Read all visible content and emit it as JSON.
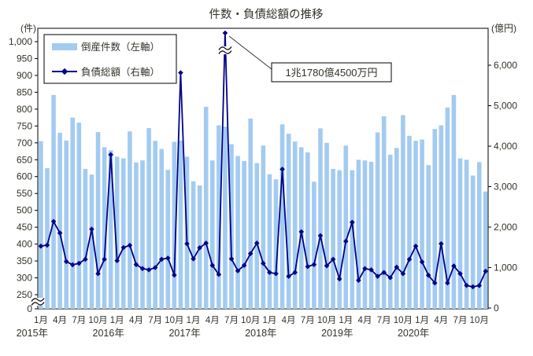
{
  "title": "件数・負債総額の推移",
  "left_axis": {
    "unit": "(件)",
    "ticks": [
      0,
      250,
      300,
      350,
      400,
      450,
      500,
      550,
      600,
      650,
      700,
      750,
      800,
      850,
      900,
      950,
      1000
    ],
    "break_between": [
      0,
      250
    ]
  },
  "right_axis": {
    "unit": "(億円)",
    "ticks": [
      0,
      1000,
      2000,
      3000,
      4000,
      5000,
      6000
    ]
  },
  "legend": {
    "bar_label": "倒産件数（左軸）",
    "line_label": "負債総額（右軸）"
  },
  "annotation": {
    "text": "1兆1780億4500万円",
    "points_to": "2017-06"
  },
  "x_axis": {
    "year_labels": [
      "2015年",
      "2016年",
      "2017年",
      "2018年",
      "2019年",
      "2020年"
    ],
    "labeled_months": [
      1,
      4,
      7,
      10
    ],
    "month_suffix": "月"
  },
  "colors": {
    "bar": "#A3CBF1",
    "line": "#00008B",
    "text": "#33322a",
    "border": "#000000",
    "background": "#FFFFFF"
  },
  "chart_data": {
    "type": "combo",
    "x": [
      "2015-01",
      "2015-02",
      "2015-03",
      "2015-04",
      "2015-05",
      "2015-06",
      "2015-07",
      "2015-08",
      "2015-09",
      "2015-10",
      "2015-11",
      "2015-12",
      "2016-01",
      "2016-02",
      "2016-03",
      "2016-04",
      "2016-05",
      "2016-06",
      "2016-07",
      "2016-08",
      "2016-09",
      "2016-10",
      "2016-11",
      "2016-12",
      "2017-01",
      "2017-02",
      "2017-03",
      "2017-04",
      "2017-05",
      "2017-06",
      "2017-07",
      "2017-08",
      "2017-09",
      "2017-10",
      "2017-11",
      "2017-12",
      "2018-01",
      "2018-02",
      "2018-03",
      "2018-04",
      "2018-05",
      "2018-06",
      "2018-07",
      "2018-08",
      "2018-09",
      "2018-10",
      "2018-11",
      "2018-12",
      "2019-01",
      "2019-02",
      "2019-03",
      "2019-04",
      "2019-05",
      "2019-06",
      "2019-07",
      "2019-08",
      "2019-09",
      "2019-10",
      "2019-11",
      "2019-12",
      "2020-01",
      "2020-02",
      "2020-03",
      "2020-04",
      "2020-05",
      "2020-06",
      "2020-07",
      "2020-08",
      "2020-09",
      "2020-10",
      "2020-11"
    ],
    "series": [
      {
        "name": "倒産件数（左軸）",
        "type": "bar",
        "axis": "left",
        "unit": "件",
        "values": [
          705,
          625,
          842,
          730,
          707,
          775,
          760,
          623,
          606,
          732,
          687,
          678,
          659,
          654,
          734,
          642,
          648,
          744,
          706,
          682,
          620,
          703,
          707,
          659,
          586,
          574,
          807,
          648,
          752,
          748,
          696,
          661,
          646,
          772,
          640,
          692,
          607,
          592,
          755,
          727,
          704,
          687,
          672,
          585,
          743,
          700,
          623,
          619,
          692,
          619,
          650,
          648,
          644,
          731,
          779,
          665,
          685,
          782,
          721,
          706,
          710,
          634,
          741,
          752,
          805,
          842,
          654,
          650,
          603,
          643,
          556
        ]
      },
      {
        "name": "負債総額（右軸）",
        "type": "line",
        "axis": "right",
        "unit": "億円",
        "values": [
          1530,
          1555,
          2140,
          1855,
          1150,
          1070,
          1105,
          1205,
          1950,
          850,
          1205,
          3790,
          1170,
          1495,
          1550,
          1075,
          975,
          945,
          1000,
          1205,
          1235,
          815,
          5815,
          1590,
          1215,
          1490,
          1605,
          1055,
          830,
          11780.45,
          1215,
          920,
          1055,
          1345,
          1605,
          1105,
          880,
          850,
          3430,
          785,
          880,
          1885,
          1025,
          1075,
          1790,
          1045,
          1205,
          720,
          1650,
          2120,
          685,
          975,
          945,
          785,
          880,
          750,
          1010,
          850,
          1205,
          1530,
          1140,
          810,
          620,
          1590,
          620,
          1040,
          850,
          560,
          525,
          557,
          910
        ]
      }
    ],
    "left_ylim_visible": [
      250,
      1000
    ],
    "right_ylim": [
      0,
      6000
    ],
    "grid": false,
    "legend_position": "top-left-inside",
    "axis_break_note": "left axis broken between 0 and 250; line spike 2017-06 exceeds right axis and is drawn through a break symbol"
  }
}
